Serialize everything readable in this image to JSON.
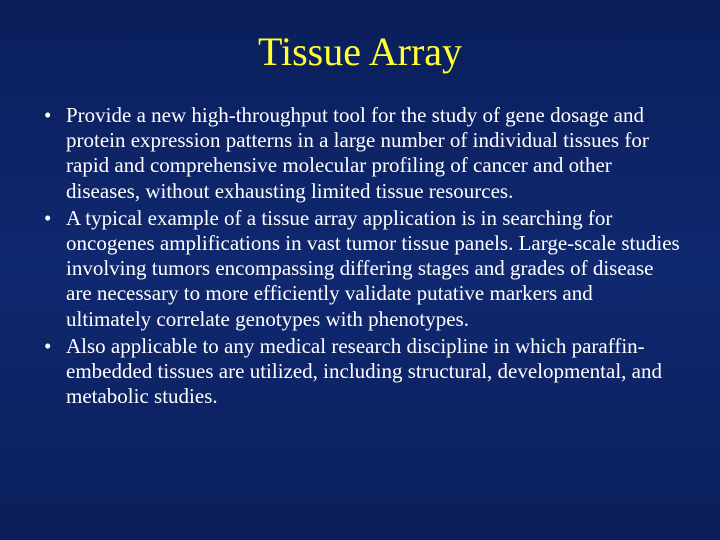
{
  "slide": {
    "background_gradient": [
      "#0a1e5a",
      "#102870",
      "#0a1e5a"
    ],
    "title": {
      "text": "Tissue Array",
      "color": "#ffff33",
      "fontsize": 40,
      "font_family": "Times New Roman"
    },
    "body": {
      "color": "#ffffff",
      "fontsize": 21,
      "font_family": "Times New Roman",
      "bullets": [
        "Provide a new high-throughput tool for the study of gene dosage and protein expression patterns in a large number of individual tissues for rapid and comprehensive molecular profiling of cancer and other diseases, without exhausting limited tissue resources.",
        "A typical example of a tissue array application is in searching for oncogenes amplifications in vast tumor tissue panels. Large-scale studies involving tumors encompassing differing stages and grades of disease are necessary to more efficiently validate putative markers and ultimately correlate genotypes with phenotypes.",
        "Also applicable to any medical research discipline in which paraffin-embedded tissues are utilized, including structural, developmental, and metabolic studies."
      ]
    }
  }
}
